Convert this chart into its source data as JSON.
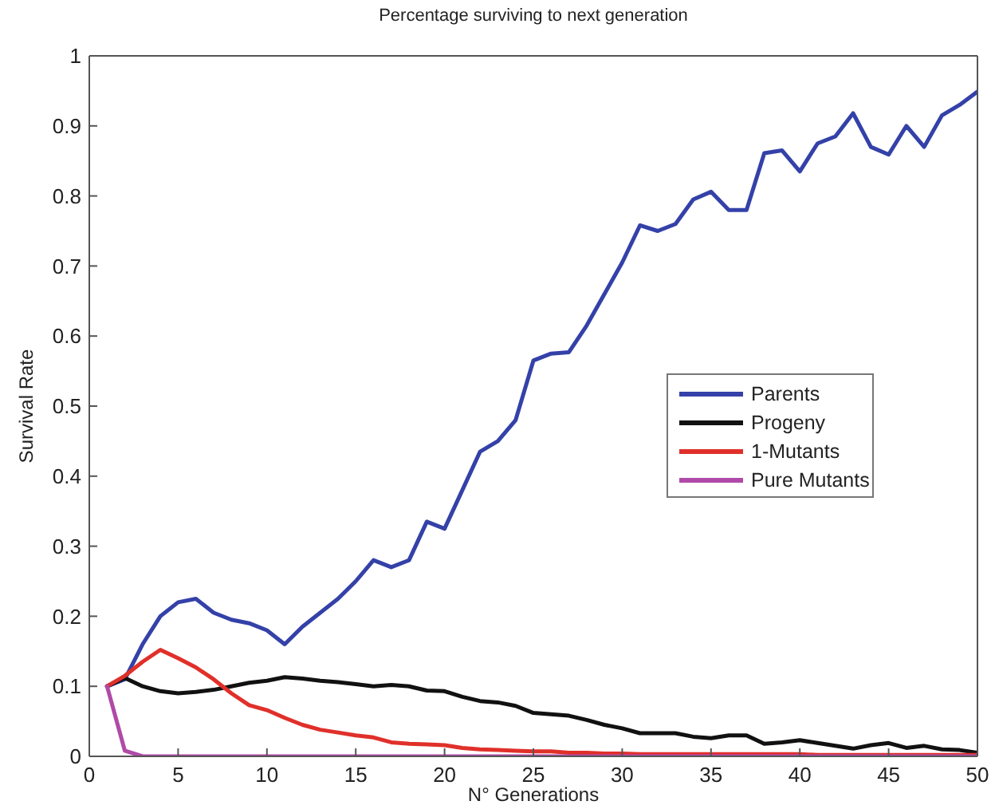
{
  "chart_data": {
    "type": "line",
    "title": "Percentage surviving to next generation",
    "xlabel": "N° Generations",
    "ylabel": "Survival Rate",
    "x": [
      1,
      2,
      3,
      4,
      5,
      6,
      7,
      8,
      9,
      10,
      11,
      12,
      13,
      14,
      15,
      16,
      17,
      18,
      19,
      20,
      21,
      22,
      23,
      24,
      25,
      26,
      27,
      28,
      29,
      30,
      31,
      32,
      33,
      34,
      35,
      36,
      37,
      38,
      39,
      40,
      41,
      42,
      43,
      44,
      45,
      46,
      47,
      48,
      49,
      50
    ],
    "series": [
      {
        "name": "Parents",
        "color": "#3441a8",
        "values": [
          0.1,
          0.11,
          0.16,
          0.2,
          0.22,
          0.225,
          0.205,
          0.195,
          0.19,
          0.18,
          0.16,
          0.185,
          0.205,
          0.225,
          0.25,
          0.28,
          0.27,
          0.28,
          0.335,
          0.325,
          0.38,
          0.435,
          0.45,
          0.48,
          0.565,
          0.575,
          0.577,
          0.615,
          0.66,
          0.705,
          0.758,
          0.75,
          0.76,
          0.795,
          0.806,
          0.78,
          0.78,
          0.861,
          0.865,
          0.835,
          0.875,
          0.885,
          0.918,
          0.87,
          0.859,
          0.9,
          0.87,
          0.915,
          0.93,
          0.949
        ]
      },
      {
        "name": "Progeny",
        "color": "#111111",
        "values": [
          0.1,
          0.112,
          0.1,
          0.093,
          0.09,
          0.092,
          0.095,
          0.1,
          0.105,
          0.108,
          0.113,
          0.111,
          0.108,
          0.106,
          0.103,
          0.1,
          0.102,
          0.1,
          0.094,
          0.093,
          0.085,
          0.079,
          0.077,
          0.072,
          0.062,
          0.06,
          0.058,
          0.052,
          0.045,
          0.04,
          0.033,
          0.033,
          0.033,
          0.028,
          0.026,
          0.03,
          0.03,
          0.018,
          0.02,
          0.023,
          0.019,
          0.015,
          0.011,
          0.016,
          0.019,
          0.012,
          0.015,
          0.01,
          0.009,
          0.005
        ]
      },
      {
        "name": "1-Mutants",
        "color": "#e0302a",
        "values": [
          0.1,
          0.115,
          0.135,
          0.152,
          0.14,
          0.127,
          0.11,
          0.09,
          0.073,
          0.066,
          0.055,
          0.045,
          0.038,
          0.034,
          0.03,
          0.027,
          0.02,
          0.018,
          0.017,
          0.016,
          0.012,
          0.01,
          0.009,
          0.008,
          0.007,
          0.007,
          0.005,
          0.005,
          0.004,
          0.004,
          0.003,
          0.003,
          0.003,
          0.003,
          0.003,
          0.003,
          0.003,
          0.003,
          0.003,
          0.003,
          0.002,
          0.002,
          0.002,
          0.002,
          0.002,
          0.002,
          0.002,
          0.002,
          0.002,
          0.002
        ]
      },
      {
        "name": "Pure Mutants",
        "color": "#b04aa8",
        "values": [
          0.1,
          0.008,
          0,
          0,
          0,
          0,
          0,
          0,
          0,
          0,
          0,
          0,
          0,
          0,
          0,
          0,
          0,
          0,
          0,
          0,
          0,
          0,
          0,
          0,
          0,
          0,
          0,
          0,
          0,
          0,
          0,
          0,
          0,
          0,
          0,
          0,
          0,
          0,
          0,
          0,
          0,
          0,
          0,
          0,
          0,
          0,
          0,
          0,
          0,
          0
        ]
      }
    ],
    "xlim": [
      0,
      50
    ],
    "xticks": [
      0,
      5,
      10,
      15,
      20,
      25,
      30,
      35,
      40,
      45,
      50
    ],
    "ylim": [
      0,
      1
    ],
    "yticks": [
      0,
      0.1,
      0.2,
      0.3,
      0.4,
      0.5,
      0.6,
      0.7,
      0.8,
      0.9,
      1
    ],
    "legend": "right",
    "marker": "none",
    "line_style": "solid"
  }
}
